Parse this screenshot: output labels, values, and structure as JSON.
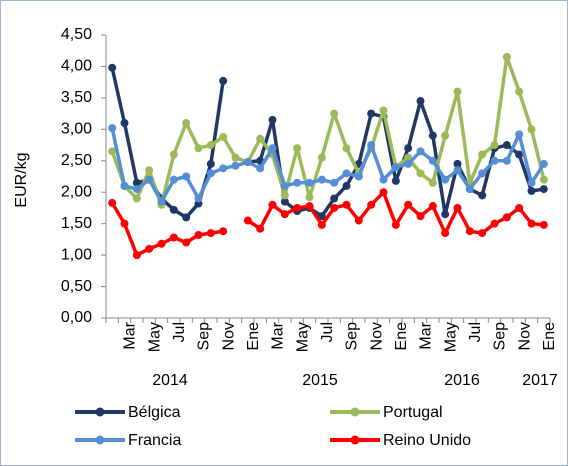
{
  "chart_data": {
    "type": "line",
    "ylabel": "EUR/kg",
    "categories": [
      null,
      "Mar",
      null,
      "May",
      null,
      "Jul",
      null,
      "Sep",
      null,
      "Nov",
      null,
      "Ene",
      null,
      "Mar",
      null,
      "May",
      null,
      "Jul",
      null,
      "Sep",
      null,
      "Nov",
      null,
      "Ene",
      null,
      "Mar",
      null,
      "May",
      null,
      "Jul",
      null,
      "Sep",
      null,
      "Nov",
      null,
      "Ene"
    ],
    "year_labels": [
      "2014",
      "2015",
      "2016",
      "2017"
    ],
    "ylim": [
      0,
      4.5
    ],
    "yticks": [
      {
        "value": 0,
        "label": "0,00"
      },
      {
        "value": 0.5,
        "label": "0,50"
      },
      {
        "value": 1,
        "label": "1,00"
      },
      {
        "value": 1.5,
        "label": "1,50"
      },
      {
        "value": 2,
        "label": "2,00"
      },
      {
        "value": 2.5,
        "label": "2,50"
      },
      {
        "value": 3,
        "label": "3,00"
      },
      {
        "value": 3.5,
        "label": "3,50"
      },
      {
        "value": 4,
        "label": "4,00"
      },
      {
        "value": 4.5,
        "label": "4,50"
      }
    ],
    "series": [
      {
        "name": "Bélgica",
        "color": "#1f3864",
        "values": [
          3.98,
          3.1,
          2.15,
          2.2,
          1.9,
          1.72,
          1.6,
          1.82,
          2.45,
          3.77,
          null,
          2.48,
          2.5,
          3.15,
          1.85,
          1.7,
          1.75,
          1.62,
          1.9,
          2.1,
          2.45,
          3.25,
          3.2,
          2.18,
          2.7,
          3.45,
          2.9,
          1.65,
          2.45,
          2.05,
          1.95,
          2.7,
          2.75,
          2.6,
          2.02,
          2.05
        ]
      },
      {
        "name": "Portugal",
        "color": "#9bbb59",
        "values": [
          2.65,
          2.1,
          1.9,
          2.35,
          1.8,
          2.6,
          3.1,
          2.7,
          2.75,
          2.88,
          2.55,
          2.48,
          2.85,
          2.6,
          1.95,
          2.7,
          1.92,
          2.55,
          3.25,
          2.7,
          2.3,
          2.7,
          3.3,
          2.4,
          2.55,
          2.3,
          2.15,
          2.9,
          3.6,
          2.15,
          2.6,
          2.75,
          4.15,
          3.6,
          3.0,
          2.2
        ]
      },
      {
        "name": "Francia",
        "color": "#558ed5",
        "values": [
          3.02,
          2.1,
          2.05,
          2.2,
          1.85,
          2.2,
          2.25,
          1.9,
          2.3,
          2.38,
          2.42,
          2.48,
          2.38,
          2.7,
          2.1,
          2.15,
          2.15,
          2.2,
          2.15,
          2.3,
          2.25,
          2.75,
          2.2,
          2.4,
          2.45,
          2.65,
          2.5,
          2.2,
          2.35,
          2.05,
          2.3,
          2.5,
          2.5,
          2.92,
          2.15,
          2.45
        ]
      },
      {
        "name": "Reino Unido",
        "color": "#ff0000",
        "values": [
          1.83,
          1.5,
          1.0,
          1.1,
          1.18,
          1.28,
          1.2,
          1.32,
          1.35,
          1.38,
          null,
          1.55,
          1.42,
          1.8,
          1.65,
          1.75,
          1.78,
          1.48,
          1.75,
          1.8,
          1.55,
          1.8,
          2.0,
          1.48,
          1.8,
          1.62,
          1.78,
          1.35,
          1.75,
          1.38,
          1.35,
          1.5,
          1.6,
          1.75,
          1.5,
          1.48
        ]
      }
    ]
  }
}
